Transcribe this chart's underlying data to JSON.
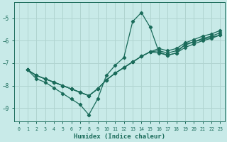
{
  "xlabel": "Humidex (Indice chaleur)",
  "background_color": "#c8eae8",
  "grid_color": "#b0d4d0",
  "line_color": "#1a6b5a",
  "xlim": [
    -0.5,
    23.5
  ],
  "ylim": [
    -9.6,
    -4.3
  ],
  "yticks": [
    -9,
    -8,
    -7,
    -6,
    -5
  ],
  "xticks": [
    0,
    1,
    2,
    3,
    4,
    5,
    6,
    7,
    8,
    9,
    10,
    11,
    12,
    13,
    14,
    15,
    16,
    17,
    18,
    19,
    20,
    21,
    22,
    23
  ],
  "line1_x": [
    1,
    2,
    3,
    4,
    5,
    6,
    7,
    8,
    9,
    10,
    11,
    12,
    13,
    14,
    15,
    16,
    17,
    18,
    19,
    20,
    21,
    22,
    23
  ],
  "line1_y": [
    -7.3,
    -7.7,
    -7.85,
    -8.1,
    -8.35,
    -8.6,
    -8.85,
    -9.3,
    -8.6,
    -7.55,
    -7.1,
    -6.75,
    -5.15,
    -4.75,
    -5.4,
    -6.5,
    -6.65,
    -6.55,
    -6.15,
    -6.05,
    -5.95,
    -5.85,
    -5.75
  ],
  "line2_x": [
    1,
    2,
    3,
    4,
    5,
    6,
    7,
    8,
    9,
    10,
    11,
    12,
    13,
    14,
    15,
    16,
    17,
    18,
    19,
    20,
    21,
    22,
    23
  ],
  "line2_y": [
    -7.3,
    -7.55,
    -7.7,
    -7.85,
    -8.0,
    -8.15,
    -8.3,
    -8.45,
    -8.15,
    -7.75,
    -7.45,
    -7.2,
    -6.95,
    -6.7,
    -6.5,
    -6.55,
    -6.65,
    -6.55,
    -6.3,
    -6.15,
    -6.0,
    -5.9,
    -5.75
  ],
  "line3_x": [
    1,
    2,
    3,
    4,
    5,
    6,
    7,
    8,
    9,
    10,
    11,
    12,
    13,
    14,
    15,
    16,
    17,
    18,
    19,
    20,
    21,
    22,
    23
  ],
  "line3_y": [
    -7.3,
    -7.55,
    -7.7,
    -7.85,
    -8.0,
    -8.15,
    -8.3,
    -8.45,
    -8.15,
    -7.75,
    -7.45,
    -7.2,
    -6.95,
    -6.7,
    -6.5,
    -6.45,
    -6.55,
    -6.45,
    -6.2,
    -6.05,
    -5.9,
    -5.8,
    -5.65
  ],
  "line4_x": [
    1,
    2,
    3,
    4,
    5,
    6,
    7,
    8,
    9,
    10,
    11,
    12,
    13,
    14,
    15,
    16,
    17,
    18,
    19,
    20,
    21,
    22,
    23
  ],
  "line4_y": [
    -7.3,
    -7.55,
    -7.7,
    -7.85,
    -8.0,
    -8.15,
    -8.3,
    -8.45,
    -8.15,
    -7.75,
    -7.45,
    -7.2,
    -6.95,
    -6.7,
    -6.5,
    -6.35,
    -6.45,
    -6.35,
    -6.1,
    -5.95,
    -5.8,
    -5.7,
    -5.55
  ]
}
